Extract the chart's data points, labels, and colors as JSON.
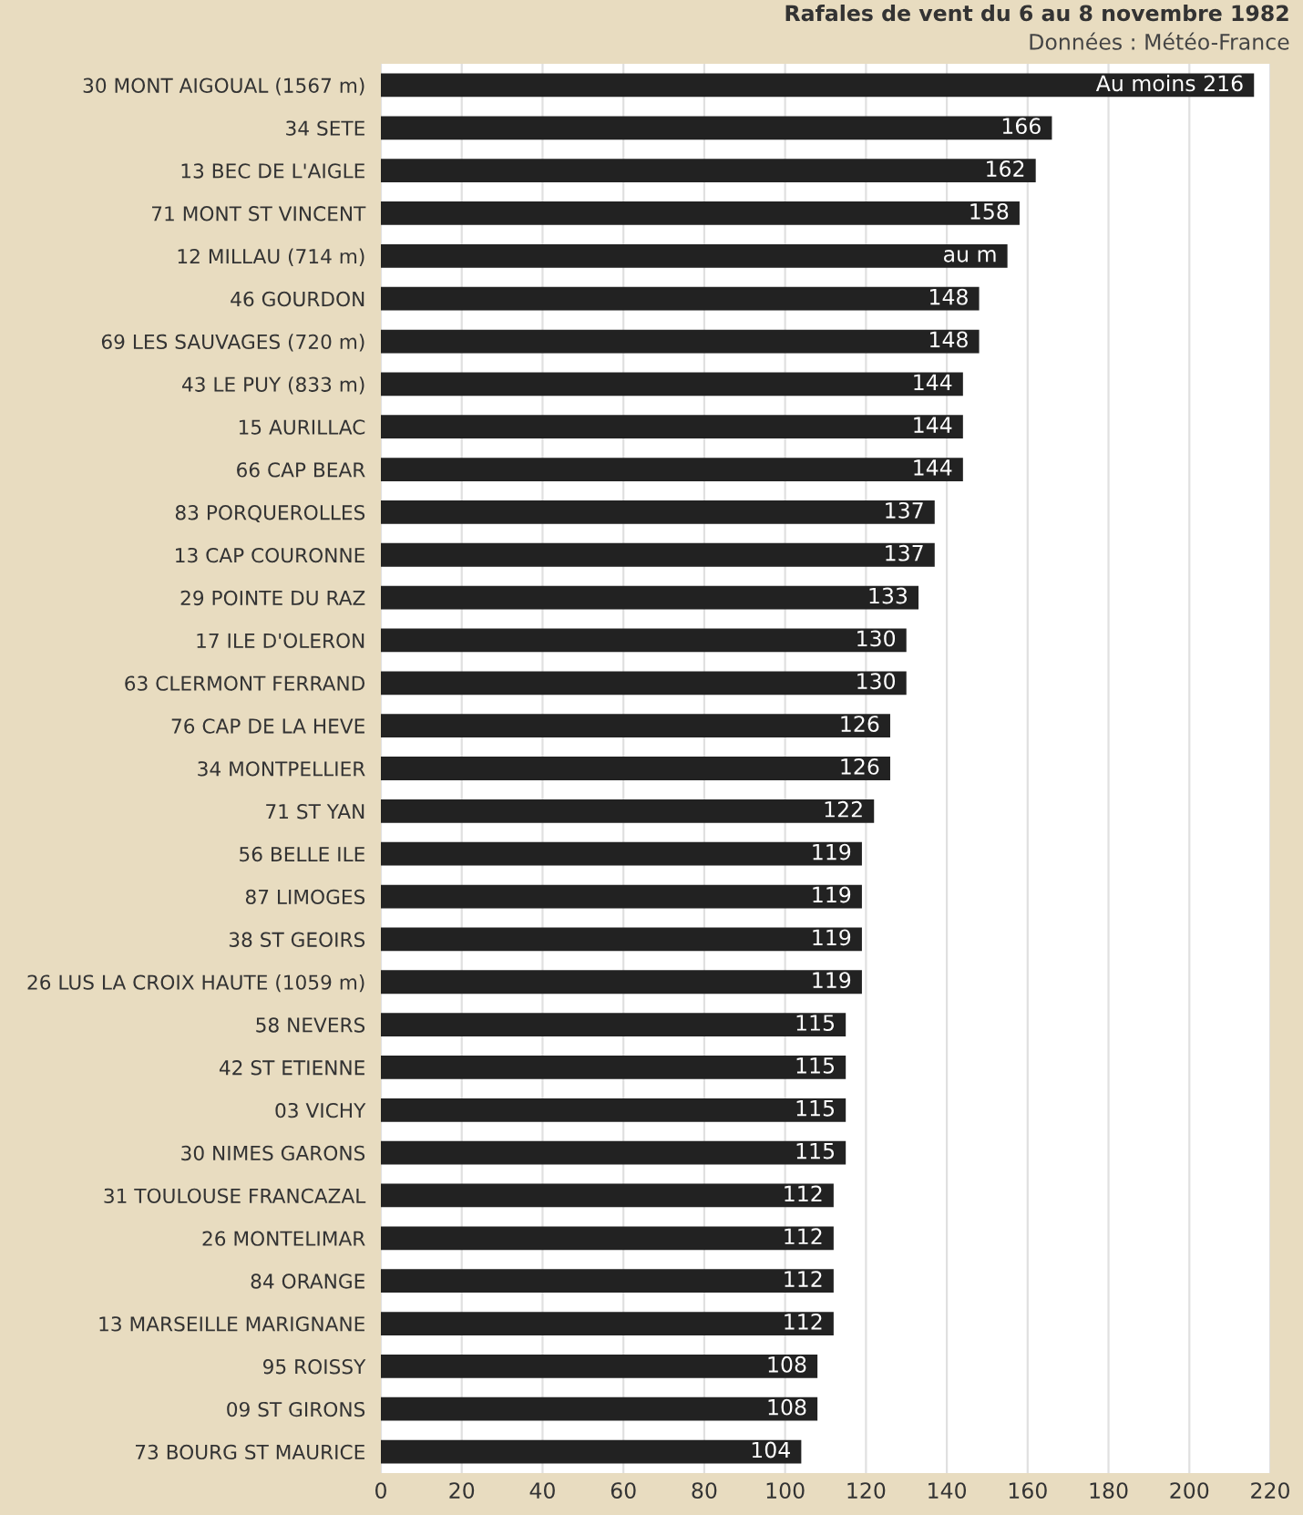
{
  "chart_data": {
    "type": "bar",
    "orientation": "horizontal",
    "title": "Rafales de vent du 6 au 8 novembre 1982",
    "subtitle": "Données : Météo-France",
    "categories": [
      "30 MONT AIGOUAL (1567 m)",
      "34 SETE",
      "13 BEC DE L'AIGLE",
      "71 MONT ST VINCENT",
      "12 MILLAU (714 m)",
      "46 GOURDON",
      "69 LES SAUVAGES (720 m)",
      "43 LE PUY (833 m)",
      "15 AURILLAC",
      "66 CAP BEAR",
      "83 PORQUEROLLES",
      "13 CAP COURONNE",
      "29 POINTE DU RAZ",
      "17 ILE D'OLERON",
      "63 CLERMONT FERRAND",
      "76 CAP DE LA HEVE",
      "34 MONTPELLIER",
      "71 ST YAN",
      "56 BELLE ILE",
      "87 LIMOGES",
      "38 ST GEOIRS",
      "26 LUS LA CROIX HAUTE (1059 m)",
      "58 NEVERS",
      "42 ST ETIENNE",
      "03 VICHY",
      "30 NIMES GARONS",
      "31 TOULOUSE FRANCAZAL",
      "26 MONTELIMAR",
      "84 ORANGE",
      "13 MARSEILLE MARIGNANE",
      "95 ROISSY",
      "09 ST GIRONS",
      "73 BOURG ST MAURICE"
    ],
    "values": [
      216,
      166,
      162,
      158,
      155,
      148,
      148,
      144,
      144,
      144,
      137,
      137,
      133,
      130,
      130,
      126,
      126,
      122,
      119,
      119,
      119,
      119,
      115,
      115,
      115,
      115,
      112,
      112,
      112,
      112,
      108,
      108,
      104
    ],
    "value_labels": [
      "Au moins 216",
      "166",
      "162",
      "158",
      "au m",
      "148",
      "148",
      "144",
      "144",
      "144",
      "137",
      "137",
      "133",
      "130",
      "130",
      "126",
      "126",
      "122",
      "119",
      "119",
      "119",
      "119",
      "115",
      "115",
      "115",
      "115",
      "112",
      "112",
      "112",
      "112",
      "108",
      "108",
      "104"
    ],
    "color": "#222222",
    "xlim": [
      0,
      220
    ],
    "xticks": [
      0,
      20,
      40,
      60,
      80,
      100,
      120,
      140,
      160,
      180,
      200,
      220
    ],
    "grid": "x"
  }
}
